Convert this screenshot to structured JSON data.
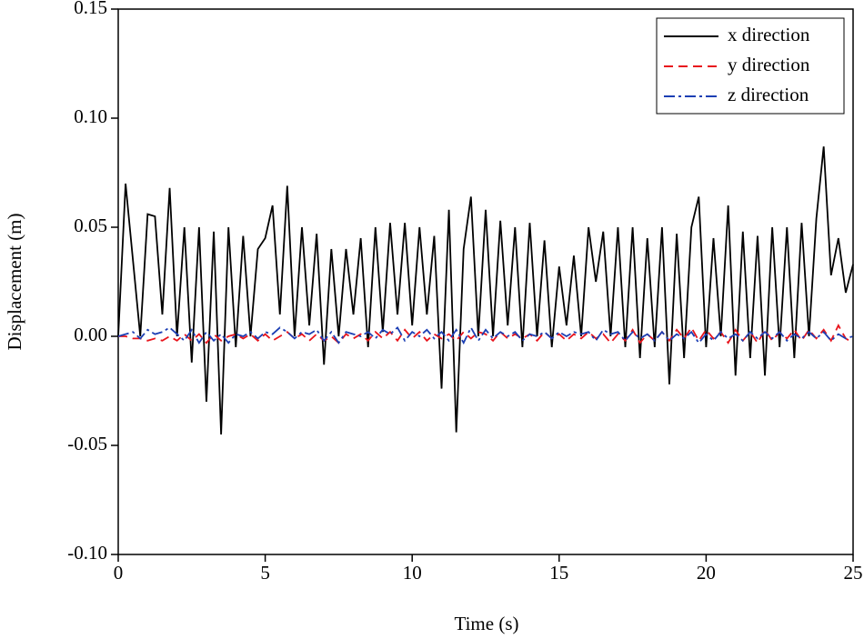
{
  "chart_data": {
    "type": "line",
    "xlabel": "Time (s)",
    "ylabel": "Displacement (m)",
    "x": [
      0,
      0.25,
      0.5,
      0.75,
      1,
      1.25,
      1.5,
      1.75,
      2,
      2.25,
      2.5,
      2.75,
      3,
      3.25,
      3.5,
      3.75,
      4,
      4.25,
      4.5,
      4.75,
      5,
      5.25,
      5.5,
      5.75,
      6,
      6.25,
      6.5,
      6.75,
      7,
      7.25,
      7.5,
      7.75,
      8,
      8.25,
      8.5,
      8.75,
      9,
      9.25,
      9.5,
      9.75,
      10,
      10.25,
      10.5,
      10.75,
      11,
      11.25,
      11.5,
      11.75,
      12,
      12.25,
      12.5,
      12.75,
      13,
      13.25,
      13.5,
      13.75,
      14,
      14.25,
      14.5,
      14.75,
      15,
      15.25,
      15.5,
      15.75,
      16,
      16.25,
      16.5,
      16.75,
      17,
      17.25,
      17.5,
      17.75,
      18,
      18.25,
      18.5,
      18.75,
      19,
      19.25,
      19.5,
      19.75,
      20,
      20.25,
      20.5,
      20.75,
      21,
      21.25,
      21.5,
      21.75,
      22,
      22.25,
      22.5,
      22.75,
      23,
      23.25,
      23.5,
      23.75,
      24,
      24.25,
      24.5,
      24.75,
      25
    ],
    "series": [
      {
        "name": "x direction",
        "color": "#000000",
        "values": [
          0,
          0.07,
          0.035,
          0,
          0.056,
          0.055,
          0.01,
          0.068,
          0,
          0.05,
          -0.012,
          0.05,
          -0.03,
          0.048,
          -0.045,
          0.05,
          -0.005,
          0.046,
          0,
          0.04,
          0.045,
          0.06,
          0.01,
          0.069,
          0,
          0.05,
          0.005,
          0.047,
          -0.013,
          0.04,
          0,
          0.04,
          0.01,
          0.045,
          -0.005,
          0.05,
          0.002,
          0.052,
          0.01,
          0.052,
          0.005,
          0.05,
          0.01,
          0.046,
          -0.024,
          0.058,
          -0.044,
          0.04,
          0.064,
          0,
          0.058,
          0,
          0.053,
          0.005,
          0.05,
          -0.005,
          0.052,
          0,
          0.044,
          -0.005,
          0.032,
          0.005,
          0.037,
          0,
          0.05,
          0.025,
          0.048,
          0,
          0.05,
          -0.005,
          0.05,
          -0.01,
          0.045,
          -0.005,
          0.05,
          -0.022,
          0.047,
          -0.01,
          0.05,
          0.064,
          -0.005,
          0.045,
          0,
          0.06,
          -0.018,
          0.048,
          -0.01,
          0.046,
          -0.018,
          0.05,
          -0.005,
          0.05,
          -0.01,
          0.052,
          0,
          0.054,
          0.087,
          0.028,
          0.045,
          0.02,
          0.033
        ]
      },
      {
        "name": "y direction",
        "color": "#e8141c",
        "values": [
          0,
          0,
          -0.001,
          -0.001,
          -0.002,
          -0.001,
          -0.002,
          0,
          -0.002,
          0.001,
          -0.002,
          0.001,
          -0.003,
          0.001,
          -0.002,
          0,
          0.001,
          -0.001,
          0.001,
          -0.002,
          0.001,
          -0.002,
          0,
          0.002,
          -0.001,
          0.001,
          -0.002,
          0.001,
          -0.002,
          0,
          -0.003,
          0.001,
          -0.001,
          0.001,
          -0.002,
          0.002,
          -0.001,
          0.002,
          -0.002,
          0.003,
          -0.001,
          0.002,
          -0.002,
          0.001,
          -0.001,
          0.001,
          -0.002,
          0.002,
          -0.001,
          0.002,
          0.001,
          -0.002,
          0.002,
          -0.001,
          0.001,
          -0.001,
          0.001,
          -0.002,
          0.002,
          -0.001,
          0.001,
          -0.002,
          0.001,
          -0.001,
          0.002,
          -0.001,
          0.001,
          -0.003,
          0.001,
          -0.002,
          0.003,
          -0.003,
          0.001,
          -0.002,
          0.002,
          -0.002,
          0.003,
          -0.001,
          0.004,
          -0.002,
          0.003,
          -0.001,
          0.002,
          -0.003,
          0.003,
          -0.002,
          0.002,
          -0.003,
          0.003,
          -0.002,
          0.002,
          -0.001,
          0.003,
          -0.002,
          0.003,
          -0.001,
          0.003,
          -0.002,
          0.005,
          -0.001,
          -0.003
        ]
      },
      {
        "name": "z direction",
        "color": "#1c3fb4",
        "values": [
          0,
          0.001,
          0.002,
          -0.001,
          0.003,
          0.001,
          0.002,
          0.004,
          0.001,
          -0.002,
          0.003,
          -0.003,
          0.002,
          -0.002,
          0.001,
          -0.003,
          0.001,
          0,
          0.002,
          -0.001,
          0.002,
          0.001,
          0.004,
          0.002,
          -0.001,
          0.002,
          0.001,
          0.003,
          -0.002,
          0.002,
          -0.003,
          0.002,
          0.001,
          0,
          0.002,
          -0.001,
          0.003,
          0.001,
          0.004,
          -0.002,
          0.002,
          0,
          0.003,
          -0.001,
          0.002,
          -0.002,
          0.003,
          -0.003,
          0.004,
          -0.002,
          0.003,
          -0.001,
          0.002,
          0,
          0.002,
          -0.002,
          0.001,
          0,
          0.002,
          -0.001,
          0.002,
          0,
          0.002,
          0.001,
          0.002,
          -0.002,
          0.003,
          0.001,
          0.002,
          -0.002,
          0.002,
          -0.001,
          0.001,
          -0.002,
          0.002,
          -0.002,
          0.001,
          -0.001,
          0.002,
          -0.003,
          0.001,
          -0.002,
          0.002,
          -0.001,
          0.001,
          -0.002,
          0.002,
          -0.001,
          0.002,
          -0.001,
          0.002,
          -0.002,
          0.001,
          -0.001,
          0.002,
          -0.001,
          0.002,
          -0.002,
          0.001,
          -0.001,
          0
        ]
      }
    ],
    "xlim": [
      0,
      25
    ],
    "xticks": [
      0,
      5,
      10,
      15,
      20,
      25
    ],
    "ylim": [
      -0.1,
      0.15
    ],
    "yticks": [
      {
        "value": -0.1,
        "label": "-0.10"
      },
      {
        "value": -0.05,
        "label": "-0.05"
      },
      {
        "value": 0,
        "label": "0.00"
      },
      {
        "value": 0.05,
        "label": "0.05"
      },
      {
        "value": 0.1,
        "label": "0.10"
      },
      {
        "value": 0.15,
        "label": "0.15"
      }
    ],
    "legend": "upper-right",
    "grid": false
  }
}
